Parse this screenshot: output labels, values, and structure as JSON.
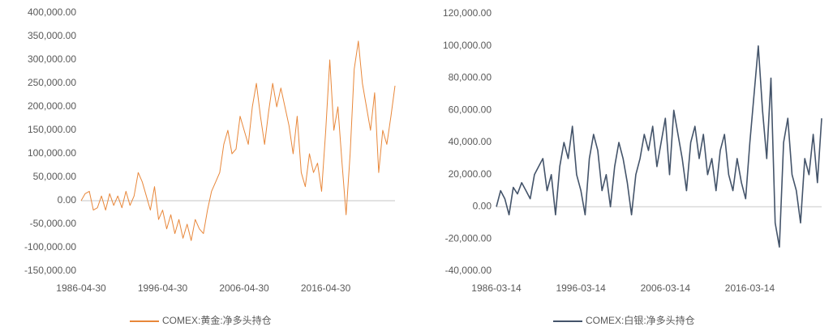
{
  "chart_data": [
    {
      "type": "line",
      "categories": [
        "1986-04-30",
        null,
        null,
        null,
        null,
        null,
        null,
        null,
        null,
        null,
        null,
        null,
        null,
        null,
        null,
        null,
        null,
        null,
        null,
        null,
        "1996-04-30",
        null,
        null,
        null,
        null,
        null,
        null,
        null,
        null,
        null,
        null,
        null,
        null,
        null,
        null,
        null,
        null,
        null,
        null,
        null,
        "2006-04-30",
        null,
        null,
        null,
        null,
        null,
        null,
        null,
        null,
        null,
        null,
        null,
        null,
        null,
        null,
        null,
        null,
        null,
        null,
        null,
        "2016-04-30",
        null,
        null,
        null,
        null,
        null,
        null,
        null,
        null,
        null,
        null,
        null,
        null,
        null,
        null,
        null,
        null,
        null
      ],
      "series": [
        {
          "name": "COMEX:黄金:净多头持仓",
          "color": "#e8873a",
          "values": [
            0,
            15000,
            20000,
            -20000,
            -15000,
            10000,
            -20000,
            15000,
            -10000,
            10000,
            -15000,
            20000,
            -10000,
            10000,
            60000,
            40000,
            10000,
            -20000,
            30000,
            -40000,
            -20000,
            -60000,
            -30000,
            -70000,
            -40000,
            -80000,
            -50000,
            -85000,
            -40000,
            -60000,
            -70000,
            -20000,
            20000,
            40000,
            60000,
            120000,
            150000,
            100000,
            110000,
            180000,
            150000,
            120000,
            200000,
            250000,
            180000,
            120000,
            190000,
            250000,
            200000,
            240000,
            200000,
            160000,
            100000,
            180000,
            60000,
            30000,
            100000,
            60000,
            80000,
            20000,
            150000,
            300000,
            150000,
            200000,
            80000,
            -30000,
            100000,
            280000,
            340000,
            250000,
            200000,
            150000,
            230000,
            60000,
            150000,
            120000,
            180000,
            245000
          ]
        }
      ],
      "ylim": [
        -150000,
        400000
      ],
      "yticks": [
        {
          "value": -150000,
          "label": "-150,000.00"
        },
        {
          "value": -100000,
          "label": "-100,000.00"
        },
        {
          "value": -50000,
          "label": "-50,000.00"
        },
        {
          "value": 0,
          "label": "0.00"
        },
        {
          "value": 50000,
          "label": "50,000.00"
        },
        {
          "value": 100000,
          "label": "100,000.00"
        },
        {
          "value": 150000,
          "label": "150,000.00"
        },
        {
          "value": 200000,
          "label": "200,000.00"
        },
        {
          "value": 250000,
          "label": "250,000.00"
        },
        {
          "value": 300000,
          "label": "300,000.00"
        },
        {
          "value": 350000,
          "label": "350,000.00"
        },
        {
          "value": 400000,
          "label": "400,000.00"
        }
      ],
      "legend": "bottom"
    },
    {
      "type": "line",
      "categories": [
        "1986-03-14",
        null,
        null,
        null,
        null,
        null,
        null,
        null,
        null,
        null,
        null,
        null,
        null,
        null,
        null,
        null,
        null,
        null,
        null,
        null,
        "1996-03-14",
        null,
        null,
        null,
        null,
        null,
        null,
        null,
        null,
        null,
        null,
        null,
        null,
        null,
        null,
        null,
        null,
        null,
        null,
        null,
        "2006-03-14",
        null,
        null,
        null,
        null,
        null,
        null,
        null,
        null,
        null,
        null,
        null,
        null,
        null,
        null,
        null,
        null,
        null,
        null,
        null,
        "2016-03-14",
        null,
        null,
        null,
        null,
        null,
        null,
        null,
        null,
        null,
        null,
        null,
        null,
        null,
        null,
        null,
        null,
        null
      ],
      "series": [
        {
          "name": "COMEX:白银:净多头持仓",
          "color": "#44546a",
          "values": [
            0,
            10000,
            5000,
            -5000,
            12000,
            8000,
            15000,
            10000,
            5000,
            20000,
            25000,
            30000,
            10000,
            20000,
            -5000,
            25000,
            40000,
            30000,
            50000,
            20000,
            10000,
            -5000,
            30000,
            45000,
            35000,
            10000,
            20000,
            0,
            25000,
            40000,
            30000,
            15000,
            -5000,
            20000,
            30000,
            45000,
            35000,
            50000,
            25000,
            40000,
            55000,
            20000,
            60000,
            45000,
            30000,
            10000,
            40000,
            50000,
            30000,
            45000,
            20000,
            30000,
            10000,
            35000,
            45000,
            20000,
            10000,
            30000,
            15000,
            5000,
            40000,
            70000,
            100000,
            60000,
            30000,
            80000,
            -10000,
            -25000,
            40000,
            55000,
            20000,
            10000,
            -10000,
            30000,
            20000,
            45000,
            15000,
            55000
          ]
        }
      ],
      "ylim": [
        -40000,
        120000
      ],
      "yticks": [
        {
          "value": -40000,
          "label": "-40,000.00"
        },
        {
          "value": -20000,
          "label": "-20,000.00"
        },
        {
          "value": 0,
          "label": "0.00"
        },
        {
          "value": 20000,
          "label": "20,000.00"
        },
        {
          "value": 40000,
          "label": "40,000.00"
        },
        {
          "value": 60000,
          "label": "60,000.00"
        },
        {
          "value": 80000,
          "label": "80,000.00"
        },
        {
          "value": 100000,
          "label": "100,000.00"
        },
        {
          "value": 120000,
          "label": "120,000.00"
        }
      ],
      "legend": "bottom"
    }
  ]
}
